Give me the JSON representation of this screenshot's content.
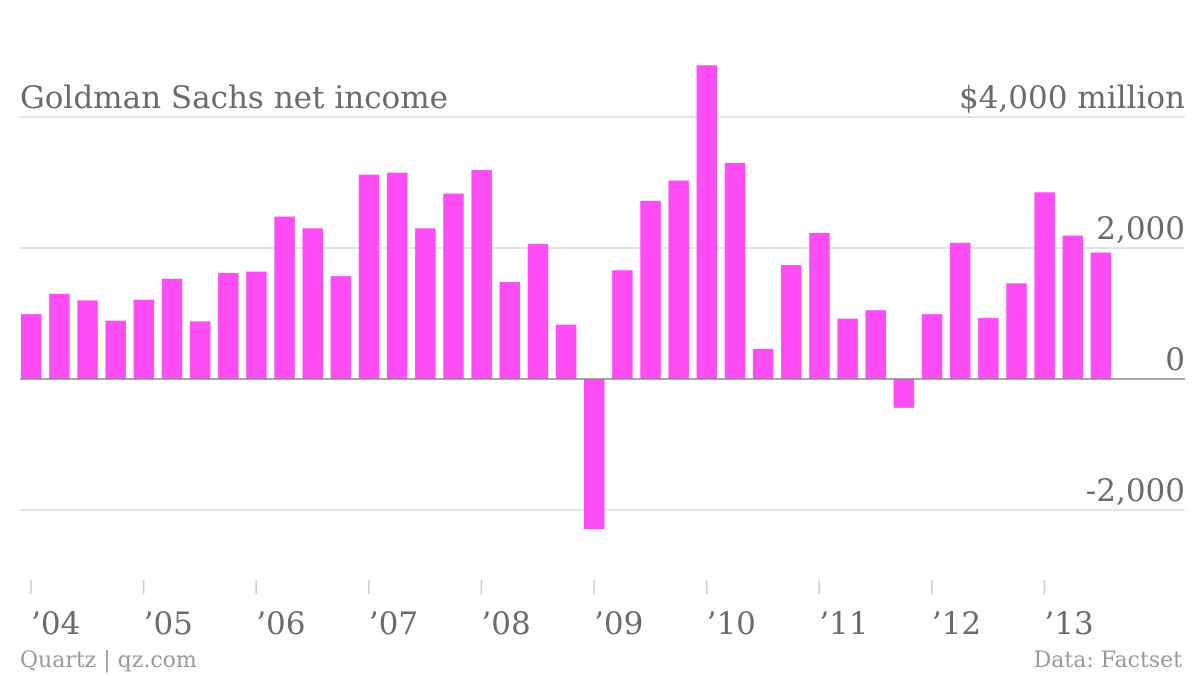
{
  "chart_data": {
    "type": "bar",
    "title": "Goldman Sachs net income",
    "unit_label": "$4,000 million",
    "y_ticks": [
      {
        "value": 2000,
        "label": "2,000"
      },
      {
        "value": 0,
        "label": "0"
      },
      {
        "value": -2000,
        "label": "-2,000"
      }
    ],
    "ylim": [
      -2700,
      4800
    ],
    "grid": true,
    "x_ticks": [
      {
        "index": 0,
        "label": "’04"
      },
      {
        "index": 4,
        "label": "’05"
      },
      {
        "index": 8,
        "label": "’06"
      },
      {
        "index": 12,
        "label": "’07"
      },
      {
        "index": 16,
        "label": "’08"
      },
      {
        "index": 20,
        "label": "’09"
      },
      {
        "index": 24,
        "label": "’10"
      },
      {
        "index": 28,
        "label": "’11"
      },
      {
        "index": 32,
        "label": "’12"
      },
      {
        "index": 36,
        "label": "’13"
      }
    ],
    "values": [
      990,
      1300,
      1200,
      890,
      1210,
      1530,
      880,
      1620,
      1640,
      2480,
      2300,
      1570,
      3120,
      3150,
      2300,
      2830,
      3190,
      1480,
      2060,
      830,
      -2290,
      1660,
      2720,
      3030,
      4790,
      3300,
      460,
      1740,
      2230,
      920,
      1050,
      -440,
      990,
      2080,
      930,
      1460,
      2850,
      2190,
      1930
    ],
    "bar_color": "#ff4df5"
  },
  "footer": {
    "source_left": "Quartz | qz.com",
    "source_right": "Data: Factset"
  }
}
